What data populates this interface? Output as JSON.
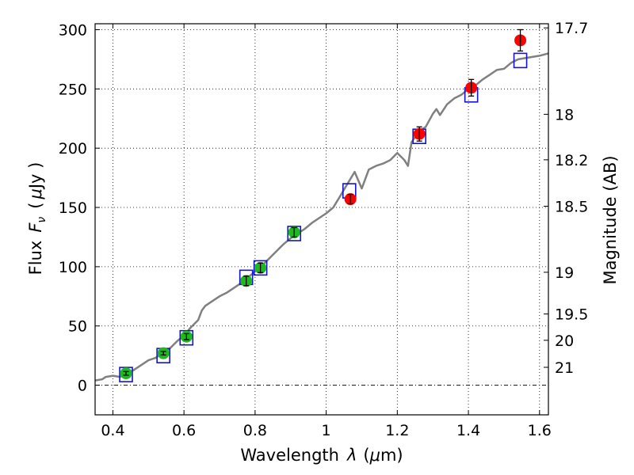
{
  "chart_data": {
    "type": "scatter",
    "title": "",
    "xlabel_prefix": "Wavelength",
    "xlabel_var": "λ",
    "xlabel_open": "(",
    "xlabel_unit_mu": "μ",
    "xlabel_unit": "m)",
    "ylabel_prefix": "Flux",
    "ylabel_var": "F",
    "ylabel_sub": "ν",
    "ylabel_open": "(",
    "ylabel_unit_mu": "μ",
    "ylabel_unit": "Jy )",
    "y2label": "Magnitude (AB)",
    "xlim": [
      0.35,
      1.625
    ],
    "ylim": [
      -25,
      305
    ],
    "grid": true,
    "x_ticks": [
      0.4,
      0.6,
      0.8,
      1.0,
      1.2,
      1.4,
      1.6
    ],
    "x_tick_labels": [
      "0.4",
      "0.6",
      "0.8",
      "1",
      "1.2",
      "1.4",
      "1.6"
    ],
    "y_ticks": [
      0,
      50,
      100,
      150,
      200,
      250,
      300
    ],
    "y_tick_labels": [
      "0",
      "50",
      "100",
      "150",
      "200",
      "250",
      "300"
    ],
    "right_ticks": [
      {
        "flux": 301.5,
        "label": "17.7"
      },
      {
        "flux": 228.6,
        "label": "18"
      },
      {
        "flux": 190.2,
        "label": "18.2"
      },
      {
        "flux": 151.0,
        "label": "18.5"
      },
      {
        "flux": 95.3,
        "label": "19"
      },
      {
        "flux": 60.1,
        "label": "19.5"
      },
      {
        "flux": 37.9,
        "label": "20"
      },
      {
        "flux": 15.1,
        "label": "21"
      }
    ],
    "series": [
      {
        "kind": "spectrum",
        "color": "#808080",
        "x": [
          0.35,
          0.37,
          0.38,
          0.4,
          0.42,
          0.44,
          0.46,
          0.48,
          0.5,
          0.52,
          0.54,
          0.56,
          0.58,
          0.6,
          0.62,
          0.64,
          0.65,
          0.66,
          0.68,
          0.7,
          0.72,
          0.74,
          0.76,
          0.77,
          0.78,
          0.8,
          0.82,
          0.84,
          0.86,
          0.88,
          0.9,
          0.92,
          0.94,
          0.96,
          0.98,
          1.0,
          1.02,
          1.04,
          1.05,
          1.06,
          1.07,
          1.08,
          1.1,
          1.12,
          1.14,
          1.16,
          1.18,
          1.2,
          1.22,
          1.23,
          1.24,
          1.26,
          1.28,
          1.3,
          1.31,
          1.32,
          1.34,
          1.36,
          1.38,
          1.4,
          1.42,
          1.44,
          1.46,
          1.48,
          1.5,
          1.52,
          1.54,
          1.56,
          1.58,
          1.6,
          1.625
        ],
        "y": [
          4,
          5,
          7,
          8,
          7,
          10,
          13,
          17,
          21,
          23,
          27,
          31,
          37,
          42,
          49,
          55,
          63,
          67,
          71,
          75,
          78,
          82,
          86,
          88,
          91,
          96,
          101,
          107,
          113,
          119,
          124,
          128,
          132,
          137,
          141,
          145,
          150,
          160,
          165,
          170,
          175,
          180,
          166,
          182,
          185,
          187,
          190,
          196,
          190,
          185,
          205,
          214,
          218,
          229,
          233,
          228,
          237,
          242,
          245,
          250,
          253,
          258,
          262,
          266,
          267,
          272,
          275,
          276,
          277,
          278,
          280
        ]
      },
      {
        "kind": "model",
        "name": "",
        "color": "#1414cc",
        "x": [
          0.437,
          0.542,
          0.607,
          0.775,
          0.815,
          0.91,
          1.065,
          1.262,
          1.408,
          1.546
        ],
        "y": [
          9,
          25,
          40,
          91,
          99,
          128,
          164,
          210,
          245,
          274
        ]
      },
      {
        "kind": "observed",
        "name": "",
        "color": "#1fb81f",
        "x": [
          0.437,
          0.542,
          0.607,
          0.775,
          0.815,
          0.91
        ],
        "y": [
          10,
          27,
          41,
          88,
          99,
          129
        ],
        "err": [
          1.5,
          1.5,
          2.5,
          4,
          4,
          4
        ]
      },
      {
        "kind": "observed",
        "name": "",
        "color": "#ff0000",
        "x": [
          1.068,
          1.262,
          1.408,
          1.546
        ],
        "y": [
          157,
          212,
          251,
          291
        ],
        "err": [
          4,
          6,
          7,
          9
        ]
      }
    ]
  }
}
